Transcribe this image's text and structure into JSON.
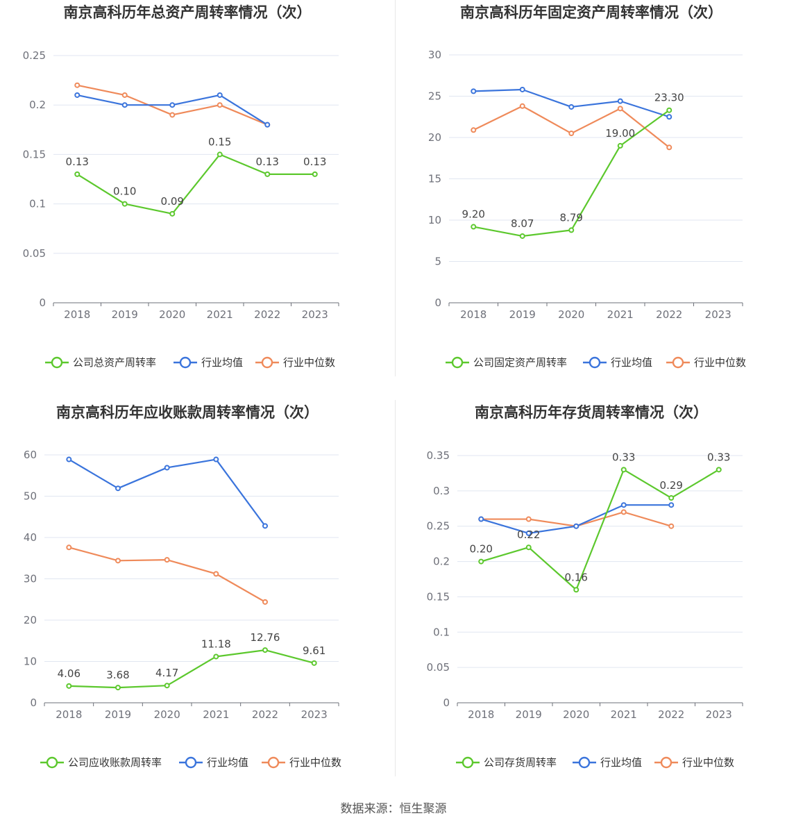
{
  "source_text": "数据来源：恒生聚源",
  "colors": {
    "company": "#5cc82d",
    "avg": "#3a74dc",
    "median": "#ef8a5a"
  },
  "chart_data": [
    {
      "type": "line",
      "title": "南京高科历年总资产周转率情况（次）",
      "categories": [
        "2018",
        "2019",
        "2020",
        "2021",
        "2022",
        "2023"
      ],
      "ylim": [
        0,
        0.25
      ],
      "yticks": [
        0,
        0.05,
        0.1,
        0.15,
        0.2,
        0.25
      ],
      "ytick_labels": [
        "0",
        "0.05",
        "0.1",
        "0.15",
        "0.2",
        "0.25"
      ],
      "series": [
        {
          "name": "公司总资产周转率",
          "values": [
            0.13,
            0.1,
            0.09,
            0.15,
            0.13,
            0.13
          ],
          "labels": [
            "0.13",
            "0.10",
            "0.09",
            "0.15",
            "0.13",
            "0.13"
          ]
        },
        {
          "name": "行业均值",
          "values": [
            0.21,
            0.2,
            0.2,
            0.21,
            0.18,
            null
          ]
        },
        {
          "name": "行业中位数",
          "values": [
            0.22,
            0.21,
            0.19,
            0.2,
            0.18,
            null
          ]
        }
      ],
      "legend": "bottom"
    },
    {
      "type": "line",
      "title": "南京高科历年固定资产周转率情况（次）",
      "categories": [
        "2018",
        "2019",
        "2020",
        "2021",
        "2022",
        "2023"
      ],
      "ylim": [
        0,
        30
      ],
      "yticks": [
        0,
        5,
        10,
        15,
        20,
        25,
        30
      ],
      "ytick_labels": [
        "0",
        "5",
        "10",
        "15",
        "20",
        "25",
        "30"
      ],
      "series": [
        {
          "name": "公司固定资产周转率",
          "values": [
            9.2,
            8.07,
            8.79,
            19.0,
            23.3,
            null
          ],
          "labels": [
            "9.20",
            "8.07",
            "8.79",
            "19.00",
            "23.30",
            ""
          ]
        },
        {
          "name": "行业均值",
          "values": [
            25.6,
            25.8,
            23.7,
            24.4,
            22.5,
            null
          ]
        },
        {
          "name": "行业中位数",
          "values": [
            20.9,
            23.8,
            20.5,
            23.5,
            18.8,
            null
          ]
        }
      ],
      "legend": "bottom"
    },
    {
      "type": "line",
      "title": "南京高科历年应收账款周转率情况（次）",
      "categories": [
        "2018",
        "2019",
        "2020",
        "2021",
        "2022",
        "2023"
      ],
      "ylim": [
        0,
        60
      ],
      "yticks": [
        0,
        10,
        20,
        30,
        40,
        50,
        60
      ],
      "ytick_labels": [
        "0",
        "10",
        "20",
        "30",
        "40",
        "50",
        "60"
      ],
      "series": [
        {
          "name": "公司应收账款周转率",
          "values": [
            4.06,
            3.68,
            4.17,
            11.18,
            12.76,
            9.61
          ],
          "labels": [
            "4.06",
            "3.68",
            "4.17",
            "11.18",
            "12.76",
            "9.61"
          ]
        },
        {
          "name": "行业均值",
          "values": [
            58.9,
            51.9,
            56.9,
            58.9,
            42.8,
            null
          ]
        },
        {
          "name": "行业中位数",
          "values": [
            37.6,
            34.4,
            34.6,
            31.2,
            24.4,
            null
          ]
        }
      ],
      "legend": "bottom"
    },
    {
      "type": "line",
      "title": "南京高科历年存货周转率情况（次）",
      "categories": [
        "2018",
        "2019",
        "2020",
        "2021",
        "2022",
        "2023"
      ],
      "ylim": [
        0,
        0.35
      ],
      "yticks": [
        0,
        0.05,
        0.1,
        0.15,
        0.2,
        0.25,
        0.3,
        0.35
      ],
      "ytick_labels": [
        "0",
        "0.05",
        "0.1",
        "0.15",
        "0.2",
        "0.25",
        "0.3",
        "0.35"
      ],
      "series": [
        {
          "name": "公司存货周转率",
          "values": [
            0.2,
            0.22,
            0.16,
            0.33,
            0.29,
            0.33
          ],
          "labels": [
            "0.20",
            "0.22",
            "0.16",
            "0.33",
            "0.29",
            "0.33"
          ]
        },
        {
          "name": "行业均值",
          "values": [
            0.26,
            0.24,
            0.25,
            0.28,
            0.28,
            null
          ]
        },
        {
          "name": "行业中位数",
          "values": [
            0.26,
            0.26,
            0.25,
            0.27,
            0.25,
            null
          ]
        }
      ],
      "legend": "bottom"
    }
  ]
}
